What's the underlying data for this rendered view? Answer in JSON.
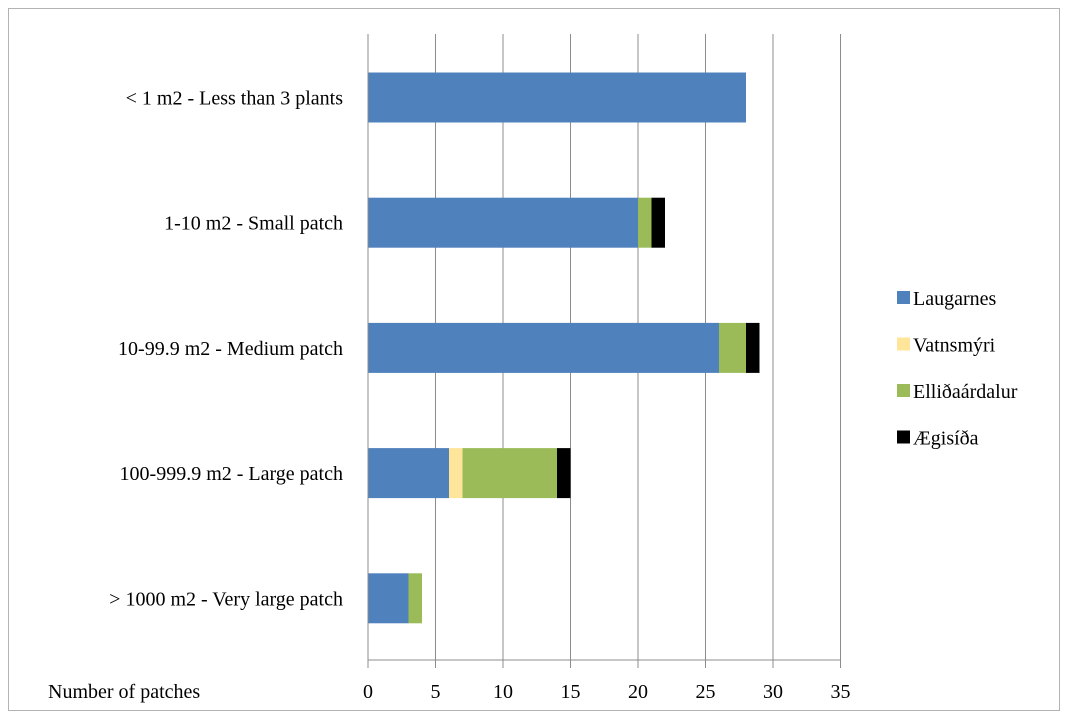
{
  "chart_data": {
    "type": "bar",
    "orientation": "horizontal",
    "stacked": true,
    "categories": [
      "< 1 m2 - Less than 3 plants",
      "1-10 m2 - Small patch",
      "10-99.9 m2 - Medium patch",
      "100-999.9 m2 - Large patch",
      "> 1000 m2 - Very large patch"
    ],
    "series": [
      {
        "name": "Laugarnes",
        "color": "#4f81bd",
        "values": [
          28,
          20,
          26,
          6,
          3
        ]
      },
      {
        "name": "Vatnsmýri",
        "color": "#ffe599",
        "values": [
          0,
          0,
          0,
          1,
          0
        ]
      },
      {
        "name": "Elliðaárdalur",
        "color": "#9bbb59",
        "values": [
          0,
          1,
          2,
          7,
          1
        ]
      },
      {
        "name": "Ægisíða",
        "color": "#000000",
        "values": [
          0,
          1,
          1,
          1,
          0
        ]
      }
    ],
    "xlabel": "Number of patches",
    "xlim": [
      0,
      35
    ],
    "xticks": [
      0,
      5,
      10,
      15,
      20,
      25,
      30,
      35
    ],
    "grid": true,
    "legend_position": "right"
  }
}
